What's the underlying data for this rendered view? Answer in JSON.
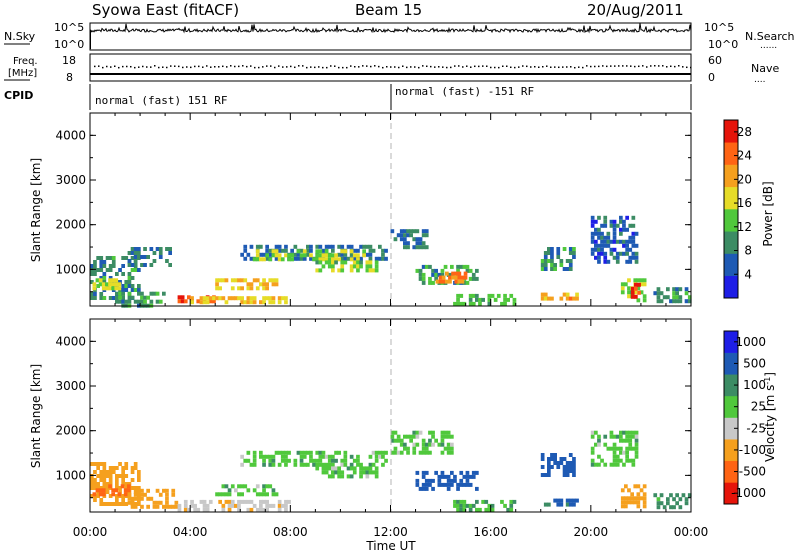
{
  "header": {
    "station": "Syowa East (fitACF)",
    "beam": "Beam 15",
    "date": "20/Aug/2011"
  },
  "noise_panel": {
    "left_label": "N.Sky",
    "right_label": "N.Search",
    "right_label_marker": "......",
    "left_ticks": [
      "10^5",
      "10^0"
    ],
    "right_ticks": [
      "10^5",
      "10^0"
    ]
  },
  "freq_panel": {
    "left_label_1": "Freq.",
    "left_label_2": "[MHz]",
    "right_label": "Nave",
    "right_label_marker": "....",
    "left_ticks": [
      "18",
      "8"
    ],
    "right_ticks": [
      "60",
      "0"
    ]
  },
  "cpid_panel": {
    "label": "CPID",
    "segments": [
      {
        "text": "normal (fast) 151 RF",
        "start_hour": 0
      },
      {
        "text": "normal (fast) -151 RF",
        "start_hour": 12
      }
    ]
  },
  "colors": {
    "power_scale": [
      "#1e1ee6",
      "#1e5ab4",
      "#3c8c64",
      "#50c83c",
      "#e6dc28",
      "#f5a01e",
      "#ff6414",
      "#e6140a"
    ],
    "velocity_scale": [
      "#e6140a",
      "#ff6414",
      "#f5a01e",
      "#c8c8c8",
      "#50c83c",
      "#3c8c64",
      "#1e5ab4",
      "#1e1ee6"
    ],
    "ground_scatter": "#b4b4b4"
  },
  "chart_data": [
    {
      "type": "heatmap",
      "title": "Power",
      "xlabel": "Time UT",
      "ylabel": "Slant Range [km]",
      "xlim": [
        0,
        24
      ],
      "ylim": [
        180,
        4500
      ],
      "y_ticks": [
        "1000",
        "2000",
        "3000",
        "4000"
      ],
      "colorbar_label": "Power [dB]",
      "colorbar_ticks": [
        "4",
        "8",
        "12",
        "16",
        "20",
        "24",
        "28"
      ],
      "colorbar_range": [
        0,
        30
      ],
      "blocks": [
        {
          "t0": 0.0,
          "t1": 2.0,
          "r0": 400,
          "r1": 1300,
          "value": 9
        },
        {
          "t0": 0.1,
          "t1": 1.2,
          "r0": 550,
          "r1": 800,
          "value": 16
        },
        {
          "t0": 1.5,
          "t1": 3.2,
          "r0": 1100,
          "r1": 1500,
          "value": 8
        },
        {
          "t0": 1.0,
          "t1": 3.0,
          "r0": 200,
          "r1": 500,
          "value": 10
        },
        {
          "t0": 3.5,
          "t1": 5.0,
          "r0": 250,
          "r1": 420,
          "value": 26
        },
        {
          "t0": 4.0,
          "t1": 8.0,
          "r0": 250,
          "r1": 400,
          "value": 18
        },
        {
          "t0": 5.0,
          "t1": 7.5,
          "r0": 600,
          "r1": 800,
          "value": 18
        },
        {
          "t0": 6.0,
          "t1": 11.8,
          "r0": 1200,
          "r1": 1550,
          "value": 8
        },
        {
          "t0": 6.5,
          "t1": 11.0,
          "r0": 1250,
          "r1": 1450,
          "value": 15
        },
        {
          "t0": 9.0,
          "t1": 11.5,
          "r0": 1000,
          "r1": 1200,
          "value": 14
        },
        {
          "t0": 12.0,
          "t1": 13.5,
          "r0": 1500,
          "r1": 1900,
          "value": 8
        },
        {
          "t0": 13.0,
          "t1": 15.5,
          "r0": 700,
          "r1": 1100,
          "value": 10
        },
        {
          "t0": 13.8,
          "t1": 15.0,
          "r0": 750,
          "r1": 950,
          "value": 22
        },
        {
          "t0": 14.5,
          "t1": 17.0,
          "r0": 250,
          "r1": 450,
          "value": 12
        },
        {
          "t0": 18.0,
          "t1": 19.3,
          "r0": 1000,
          "r1": 1500,
          "value": 9
        },
        {
          "t0": 18.0,
          "t1": 19.5,
          "r0": 350,
          "r1": 480,
          "value": 20
        },
        {
          "t0": 20.0,
          "t1": 21.8,
          "r0": 1200,
          "r1": 2200,
          "value": 6
        },
        {
          "t0": 21.2,
          "t1": 22.2,
          "r0": 300,
          "r1": 800,
          "value": 14
        },
        {
          "t0": 21.6,
          "t1": 21.9,
          "r0": 400,
          "r1": 700,
          "value": 27
        },
        {
          "t0": 22.5,
          "t1": 24.0,
          "r0": 250,
          "r1": 600,
          "value": 9
        }
      ]
    },
    {
      "type": "heatmap",
      "title": "Velocity",
      "xlabel": "Time UT",
      "ylabel": "Slant Range [km]",
      "xlim": [
        0,
        24
      ],
      "ylim": [
        180,
        4500
      ],
      "x_ticks": [
        "00:00",
        "04:00",
        "08:00",
        "12:00",
        "16:00",
        "20:00",
        "00:00"
      ],
      "y_ticks": [
        "1000",
        "2000",
        "3000",
        "4000"
      ],
      "colorbar_label": "Velocity [m s^-1]",
      "colorbar_ticks": [
        "1000",
        "500",
        "100",
        "25",
        "-25",
        "-100",
        "-500",
        "-1000"
      ],
      "blocks": [
        {
          "t0": 0.0,
          "t1": 2.0,
          "r0": 400,
          "r1": 1300,
          "value": -150
        },
        {
          "t0": 0.1,
          "t1": 1.5,
          "r0": 550,
          "r1": 800,
          "value": -600
        },
        {
          "t0": 1.5,
          "t1": 3.5,
          "r0": 300,
          "r1": 700,
          "value": -300
        },
        {
          "t0": 3.5,
          "t1": 8.0,
          "r0": 250,
          "r1": 450,
          "value": -80
        },
        {
          "t0": 5.0,
          "t1": 7.5,
          "r0": 550,
          "r1": 800,
          "value": 0
        },
        {
          "t0": 6.0,
          "t1": 11.8,
          "r0": 1200,
          "r1": 1550,
          "value": 0
        },
        {
          "t0": 9.0,
          "t1": 11.5,
          "r0": 1000,
          "r1": 1200,
          "value": 0
        },
        {
          "t0": 12.0,
          "t1": 14.5,
          "r0": 1500,
          "r1": 2000,
          "value": 0
        },
        {
          "t0": 13.0,
          "t1": 15.5,
          "r0": 700,
          "r1": 1100,
          "value": 150
        },
        {
          "t0": 14.5,
          "t1": 17.0,
          "r0": 250,
          "r1": 450,
          "value": 20
        },
        {
          "t0": 18.0,
          "t1": 19.3,
          "r0": 1000,
          "r1": 1500,
          "value": 200
        },
        {
          "t0": 18.0,
          "t1": 19.5,
          "r0": 350,
          "r1": 480,
          "value": 120
        },
        {
          "t0": 20.0,
          "t1": 21.8,
          "r0": 1200,
          "r1": 2000,
          "value": 0
        },
        {
          "t0": 21.2,
          "t1": 22.2,
          "r0": 300,
          "r1": 800,
          "value": -400
        },
        {
          "t0": 22.5,
          "t1": 24.0,
          "r0": 250,
          "r1": 600,
          "value": 50
        }
      ]
    }
  ]
}
